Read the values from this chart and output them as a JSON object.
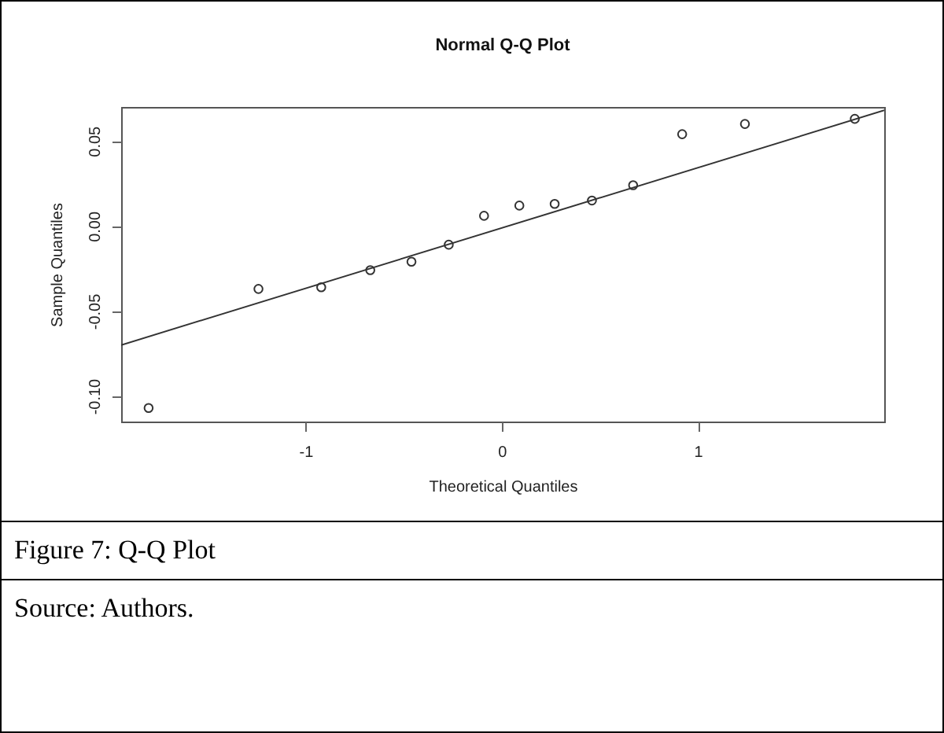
{
  "chart_data": {
    "type": "scatter",
    "title": "Normal Q-Q Plot",
    "xlabel": "Theoretical Quantiles",
    "ylabel": "Sample Quantiles",
    "annotations": [
      "Figure 7: Q-Q Plot",
      "Source: Authors."
    ],
    "x": [
      -1.8,
      -1.24,
      -0.92,
      -0.67,
      -0.46,
      -0.27,
      -0.09,
      0.09,
      0.27,
      0.46,
      0.67,
      0.92,
      1.24,
      1.8
    ],
    "series": [
      {
        "color": "#333333",
        "marker": "circle",
        "values": [
          -0.107,
          -0.037,
          -0.036,
          -0.026,
          -0.021,
          -0.011,
          0.006,
          0.012,
          0.013,
          0.015,
          0.024,
          0.054,
          0.06,
          0.063
        ]
      },
      {
        "type": "line",
        "color": "#333333",
        "line_style": "solid",
        "marker": "none",
        "x": [
          -1.94,
          1.95
        ],
        "values": [
          -0.07,
          0.068
        ]
      }
    ],
    "xlim": [
      -1.94,
      1.95
    ],
    "ylim": [
      -0.115,
      0.07
    ],
    "xticks": [
      -1,
      0,
      1
    ],
    "yticks": [
      {
        "value": -0.1,
        "label": "-0.10"
      },
      {
        "value": -0.05,
        "label": "-0.05"
      },
      {
        "value": 0,
        "label": "0.00"
      },
      {
        "value": 0.05,
        "label": "0.05"
      }
    ],
    "grid": false
  }
}
